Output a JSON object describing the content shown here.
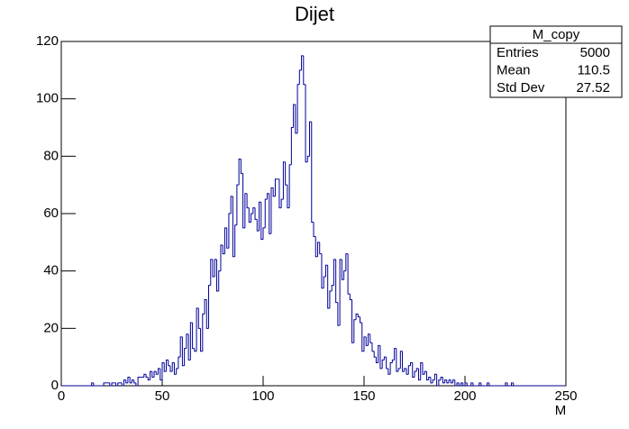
{
  "chart_data": {
    "type": "histogram",
    "title": "Dijet",
    "x_label": "M",
    "bins": [
      0,
      1,
      2,
      3,
      4,
      5,
      6,
      7,
      8,
      9,
      10,
      11,
      12,
      13,
      14,
      15,
      16,
      17,
      18,
      19,
      20,
      21,
      22,
      23,
      24,
      25,
      26,
      27,
      28,
      29,
      30,
      31,
      32,
      33,
      34,
      35,
      36,
      37,
      38,
      39,
      40,
      41,
      42,
      43,
      44,
      45,
      46,
      47,
      48,
      49,
      50,
      51,
      52,
      53,
      54,
      55,
      56,
      57,
      58,
      59,
      60,
      61,
      62,
      63,
      64,
      65,
      66,
      67,
      68,
      69,
      70,
      71,
      72,
      73,
      74,
      75,
      76,
      77,
      78,
      79,
      80,
      81,
      82,
      83,
      84,
      85,
      86,
      87,
      88,
      89,
      90,
      91,
      92,
      93,
      94,
      95,
      96,
      97,
      98,
      99,
      100,
      101,
      102,
      103,
      104,
      105,
      106,
      107,
      108,
      109,
      110,
      111,
      112,
      113,
      114,
      115,
      116,
      117,
      118,
      119,
      120,
      121,
      122,
      123,
      124,
      125,
      126,
      127,
      128,
      129,
      130,
      131,
      132,
      133,
      134,
      135,
      136,
      137,
      138,
      139,
      140,
      141,
      142,
      143,
      144,
      145,
      146,
      147,
      148,
      149,
      150,
      151,
      152,
      153,
      154,
      155,
      156,
      157,
      158,
      159,
      160,
      161,
      162,
      163,
      164,
      165,
      166,
      167,
      168,
      169,
      170,
      171,
      172,
      173,
      174,
      175,
      176,
      177,
      178,
      179,
      180,
      181,
      182,
      183,
      184,
      185,
      186,
      187,
      188,
      189,
      190,
      191,
      192,
      193,
      194,
      195,
      196,
      197,
      198,
      199,
      200,
      201,
      202,
      203,
      204,
      205,
      206,
      207,
      208,
      209,
      210,
      211,
      212,
      213,
      214,
      215,
      216,
      217,
      218,
      219,
      220,
      221,
      222,
      223,
      224,
      225,
      226,
      227,
      228,
      229,
      230,
      231,
      232,
      233,
      234,
      235,
      236,
      237,
      238,
      239,
      240,
      241,
      242,
      243,
      244,
      245,
      246,
      247,
      248,
      249,
      250
    ],
    "values": [
      0,
      0,
      0,
      0,
      0,
      0,
      0,
      0,
      0,
      0,
      0,
      0,
      0,
      0,
      0,
      1,
      0,
      0,
      0,
      0,
      0,
      1,
      1,
      1,
      0,
      1,
      1,
      0,
      1,
      1,
      0,
      2,
      1,
      3,
      1,
      2,
      1,
      0,
      3,
      3,
      3,
      4,
      3,
      2,
      5,
      3,
      5,
      4,
      6,
      2,
      8,
      5,
      9,
      7,
      5,
      8,
      4,
      6,
      10,
      17,
      7,
      13,
      18,
      9,
      22,
      13,
      12,
      27,
      20,
      12,
      25,
      30,
      20,
      35,
      44,
      38,
      44,
      33,
      40,
      49,
      46,
      55,
      48,
      60,
      66,
      45,
      56,
      70,
      79,
      74,
      55,
      67,
      62,
      57,
      60,
      62,
      58,
      54,
      64,
      51,
      55,
      65,
      67,
      53,
      69,
      66,
      72,
      72,
      62,
      65,
      78,
      70,
      62,
      77,
      90,
      98,
      88,
      105,
      110,
      115,
      105,
      78,
      80,
      92,
      57,
      52,
      45,
      50,
      46,
      34,
      38,
      42,
      27,
      33,
      35,
      44,
      29,
      21,
      44,
      37,
      40,
      46,
      32,
      30,
      15,
      23,
      25,
      24,
      22,
      12,
      17,
      14,
      18,
      15,
      12,
      10,
      8,
      14,
      6,
      9,
      10,
      6,
      4,
      8,
      9,
      13,
      5,
      6,
      12,
      5,
      6,
      4,
      7,
      8,
      3,
      5,
      6,
      2,
      8,
      4,
      5,
      2,
      3,
      1,
      2,
      4,
      0,
      2,
      3,
      1,
      2,
      1,
      2,
      1,
      2,
      0,
      1,
      0,
      1,
      0,
      1,
      0,
      0,
      1,
      0,
      0,
      0,
      1,
      0,
      0,
      0,
      1,
      0,
      0,
      0,
      0,
      0,
      0,
      0,
      0,
      1,
      0,
      0,
      1,
      0,
      0,
      0,
      0,
      0,
      0,
      0,
      0,
      0,
      0,
      0,
      0,
      0,
      0,
      0,
      0,
      0,
      0,
      0,
      0,
      0,
      0,
      0,
      0,
      0,
      0
    ],
    "color": "#000099",
    "xlim": [
      0,
      250
    ],
    "xticks": [
      0,
      50,
      100,
      150,
      200,
      250
    ],
    "ylim": [
      0,
      120
    ],
    "yticks": [
      0,
      20,
      40,
      60,
      80,
      100,
      120
    ],
    "stats": {
      "title": "M_copy",
      "rows": [
        [
          "Entries",
          5000
        ],
        [
          "Mean",
          110.5
        ],
        [
          "Std Dev",
          27.52
        ]
      ]
    }
  }
}
